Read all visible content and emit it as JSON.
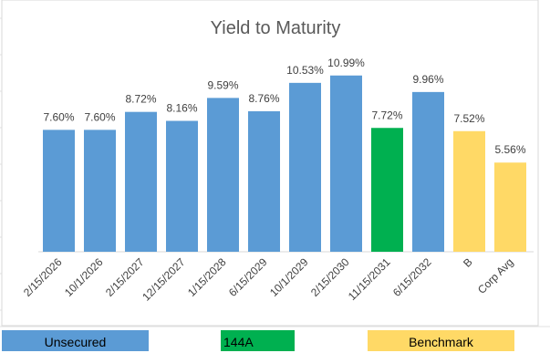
{
  "chart_data": {
    "type": "bar",
    "title": "Yield to Maturity",
    "categories": [
      "2/15/2026",
      "10/1/2026",
      "2/15/2027",
      "12/15/2027",
      "1/15/2028",
      "6/15/2029",
      "10/1/2029",
      "2/15/2030",
      "11/15/2031",
      "6/15/2032",
      "B",
      "Corp Avg"
    ],
    "values": [
      7.6,
      7.6,
      8.72,
      8.16,
      9.59,
      8.76,
      10.53,
      10.99,
      7.72,
      9.96,
      7.52,
      5.56
    ],
    "value_labels": [
      "7.60%",
      "7.60%",
      "8.72%",
      "8.16%",
      "9.59%",
      "8.76%",
      "10.53%",
      "10.99%",
      "7.72%",
      "9.96%",
      "7.52%",
      "5.56%"
    ],
    "colors": [
      "#5b9bd5",
      "#5b9bd5",
      "#5b9bd5",
      "#5b9bd5",
      "#5b9bd5",
      "#5b9bd5",
      "#5b9bd5",
      "#5b9bd5",
      "#00b050",
      "#5b9bd5",
      "#ffd966",
      "#ffd966"
    ],
    "ylim": [
      0,
      12
    ],
    "legend": [
      {
        "label": "Unsecured",
        "color": "#5b9bd5"
      },
      {
        "label": "144A",
        "color": "#00b050"
      },
      {
        "label": "Benchmark",
        "color": "#ffd966"
      }
    ]
  }
}
